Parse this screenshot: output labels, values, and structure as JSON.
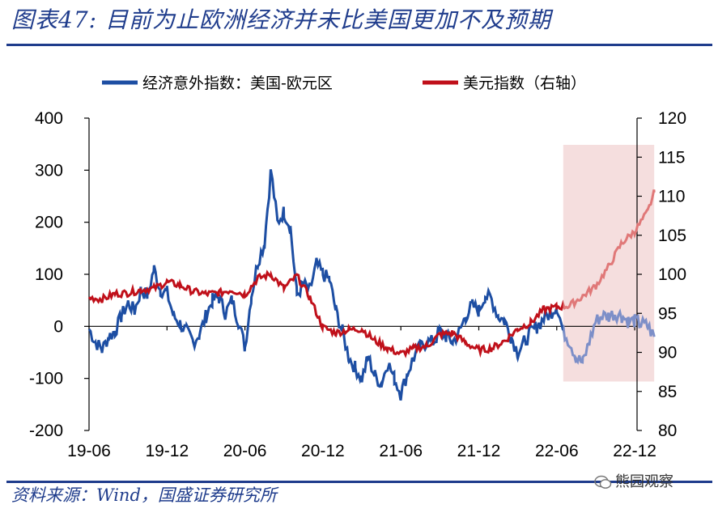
{
  "title": "图表47: 目前为止欧洲经济并未比美国更加不及预期",
  "source": "资料来源：Wind，国盛证券研究所",
  "watermark": "熊园观察",
  "colors": {
    "blue": "#1d4ea3",
    "red": "#c0101a",
    "shade": "#f5dede",
    "brand": "#1f3c8c"
  },
  "chart_data": {
    "type": "line",
    "title": "图表47: 目前为止欧洲经济并未比美国更加不及预期",
    "x_tick_labels": [
      "19-06",
      "19-12",
      "20-06",
      "20-12",
      "21-06",
      "21-12",
      "22-06",
      "22-12"
    ],
    "legend": [
      {
        "name": "经济意外指数：美国-欧元区",
        "axis": "left",
        "color": "#1d4ea3"
      },
      {
        "name": "美元指数（右轴）",
        "axis": "right",
        "color": "#c0101a"
      }
    ],
    "y_left": {
      "min": -200,
      "max": 400,
      "ticks": [
        400,
        300,
        200,
        100,
        0,
        -100,
        -200
      ]
    },
    "y_right": {
      "min": 80,
      "max": 120,
      "ticks": [
        120,
        115,
        110,
        105,
        100,
        95,
        90,
        85,
        80
      ]
    },
    "highlight_region": {
      "from_month": 36.5,
      "to_month": 43.5,
      "note": "shaded forecast-period region"
    },
    "series": [
      {
        "name": "经济意外指数：美国-欧元区",
        "axis": "left",
        "x_months": [
          0,
          0.5,
          1,
          1.5,
          2,
          2.5,
          3,
          3.5,
          4,
          4.5,
          5,
          5.5,
          6,
          6.5,
          7,
          7.5,
          8,
          8.5,
          9,
          9.5,
          10,
          10.5,
          11,
          11.5,
          12,
          12.5,
          13,
          13.5,
          14,
          14.5,
          15,
          15.5,
          16,
          16.5,
          17,
          17.5,
          18,
          18.5,
          19,
          19.5,
          20,
          20.5,
          21,
          21.5,
          22,
          22.5,
          23,
          23.5,
          24,
          24.5,
          25,
          25.5,
          26,
          26.5,
          27,
          27.5,
          28,
          28.5,
          29,
          29.5,
          30,
          30.5,
          31,
          31.5,
          32,
          32.5,
          33,
          33.5,
          34,
          34.5,
          35,
          35.5,
          36,
          36.5,
          37,
          37.5,
          38,
          38.5,
          39,
          39.5,
          40,
          40.5,
          41,
          41.5,
          42,
          42.5,
          43,
          43.5
        ],
        "values": [
          -5,
          -30,
          -45,
          -20,
          -10,
          20,
          45,
          30,
          70,
          60,
          110,
          70,
          65,
          20,
          5,
          -10,
          -30,
          -15,
          20,
          50,
          55,
          25,
          50,
          10,
          -40,
          60,
          125,
          160,
          300,
          200,
          220,
          190,
          60,
          80,
          70,
          120,
          100,
          90,
          30,
          -10,
          -60,
          -80,
          -100,
          -60,
          -95,
          -110,
          -70,
          -100,
          -130,
          -90,
          -60,
          -40,
          -30,
          -30,
          -10,
          -20,
          -30,
          -10,
          20,
          40,
          30,
          60,
          50,
          20,
          10,
          -20,
          -50,
          -30,
          -10,
          0,
          15,
          25,
          40,
          -10,
          -30,
          -60,
          -70,
          -30,
          10,
          20,
          20,
          25,
          20,
          10,
          10,
          5,
          0,
          -20
        ]
      },
      {
        "name": "美元指数（右轴）",
        "axis": "right",
        "x_months": [
          0,
          1,
          2,
          3,
          4,
          5,
          6,
          7,
          8,
          9,
          10,
          11,
          12,
          13,
          14,
          15,
          16,
          17,
          18,
          19,
          20,
          21,
          22,
          23,
          24,
          25,
          26,
          27,
          28,
          29,
          30,
          31,
          32,
          33,
          34,
          35,
          36,
          37,
          38,
          39,
          40,
          41,
          42,
          43,
          43.5
        ],
        "values": [
          97,
          96.8,
          97.5,
          97.6,
          98,
          98.2,
          99,
          98.6,
          97.8,
          97.5,
          97.6,
          98,
          97.4,
          99.5,
          100,
          98.2,
          99.8,
          97,
          93.2,
          92.5,
          92.9,
          93,
          91.5,
          90.5,
          89.8,
          90.5,
          90.8,
          92.3,
          92.5,
          91.2,
          90.3,
          90.5,
          91.5,
          93,
          93.8,
          95.5,
          95.8,
          96,
          97.2,
          98.5,
          101,
          104,
          105.5,
          108,
          110.5
        ]
      }
    ]
  }
}
